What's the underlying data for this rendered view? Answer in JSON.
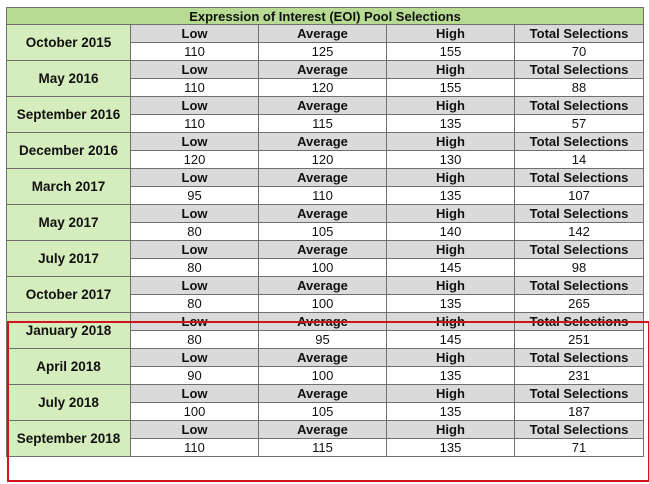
{
  "title": "Expression of Interest (EOI) Pool Selections",
  "columns": [
    "Low",
    "Average",
    "High",
    "Total Selections"
  ],
  "rows": [
    {
      "label": "October 2015",
      "values": [
        "110",
        "125",
        "155",
        "70"
      ]
    },
    {
      "label": "May 2016",
      "values": [
        "110",
        "120",
        "155",
        "88"
      ]
    },
    {
      "label": "September 2016",
      "values": [
        "110",
        "115",
        "135",
        "57"
      ]
    },
    {
      "label": "December 2016",
      "values": [
        "120",
        "120",
        "130",
        "14"
      ]
    },
    {
      "label": "March 2017",
      "values": [
        "95",
        "110",
        "135",
        "107"
      ]
    },
    {
      "label": "May 2017",
      "values": [
        "80",
        "105",
        "140",
        "142"
      ]
    },
    {
      "label": "July 2017",
      "values": [
        "80",
        "100",
        "145",
        "98"
      ]
    },
    {
      "label": "October 2017",
      "values": [
        "80",
        "100",
        "135",
        "265"
      ]
    },
    {
      "label": "January 2018",
      "values": [
        "80",
        "95",
        "145",
        "251"
      ]
    },
    {
      "label": "April 2018",
      "values": [
        "90",
        "100",
        "135",
        "231"
      ]
    },
    {
      "label": "July 2018",
      "values": [
        "100",
        "105",
        "135",
        "187"
      ]
    },
    {
      "label": "September 2018",
      "values": [
        "110",
        "115",
        "135",
        "71"
      ]
    }
  ],
  "highlight_color": "#d0141e",
  "highlighted_rows": [
    "January 2018",
    "April 2018",
    "July 2018",
    "September 2018"
  ]
}
